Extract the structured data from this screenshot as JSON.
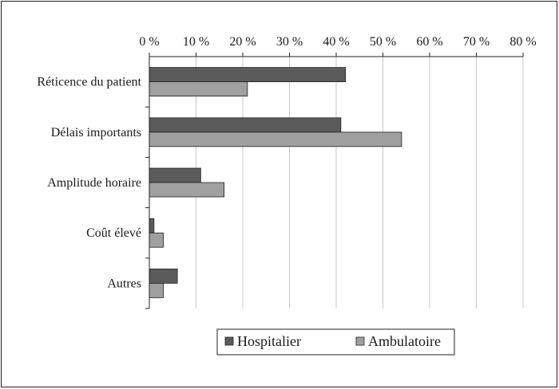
{
  "chart_data": {
    "type": "bar",
    "orientation": "horizontal",
    "title": "",
    "xlabel": "",
    "ylabel": "",
    "xlim": [
      0,
      80
    ],
    "x_ticks": [
      0,
      10,
      20,
      30,
      40,
      50,
      60,
      70,
      80
    ],
    "x_tick_labels": [
      "0 %",
      "10 %",
      "20 %",
      "30 %",
      "40 %",
      "50 %",
      "60 %",
      "70 %",
      "80 %"
    ],
    "x_axis_position": "top",
    "grid": "vertical",
    "categories": [
      "Réticence du patient",
      "Délais importants",
      "Amplitude horaire",
      "Coût élevé",
      "Autres"
    ],
    "series": [
      {
        "name": "Hospitalier",
        "color": "#5b5b5b",
        "values": [
          42,
          41,
          11,
          1,
          6
        ]
      },
      {
        "name": "Ambulatoire",
        "color": "#a0a0a0",
        "values": [
          21,
          54,
          16,
          3,
          3
        ]
      }
    ],
    "legend": {
      "position": "bottom-right",
      "items": [
        "Hospitalier",
        "Ambulatoire"
      ]
    }
  }
}
